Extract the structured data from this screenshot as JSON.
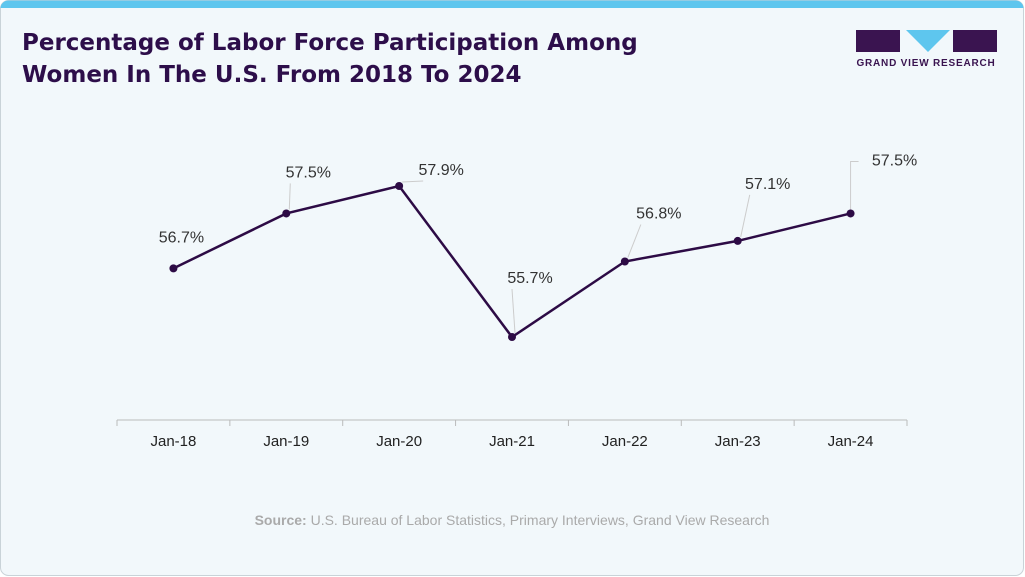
{
  "chart_data": {
    "type": "line",
    "title": "Percentage of Labor Force Participation Among",
    "title_line2": "Women In The U.S. From 2018 To 2024",
    "categories": [
      "Jan-18",
      "Jan-19",
      "Jan-20",
      "Jan-21",
      "Jan-22",
      "Jan-23",
      "Jan-24"
    ],
    "values": [
      56.7,
      57.5,
      57.9,
      55.7,
      56.8,
      57.1,
      57.5
    ],
    "value_labels": [
      "56.7%",
      "57.5%",
      "57.9%",
      "55.7%",
      "56.8%",
      "57.1%",
      "57.5%"
    ],
    "color": "#2d0b45",
    "grid": false
  },
  "source_label": "Source:",
  "source_text": "U.S. Bureau of Labor Statistics, Primary Interviews, Grand View Research",
  "logo_text": "GRAND VIEW RESEARCH"
}
